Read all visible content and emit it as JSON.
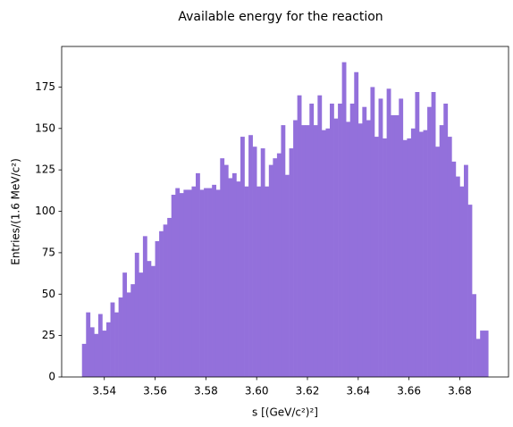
{
  "chart_data": {
    "type": "histogram",
    "title": "Available energy for the reaction",
    "x_label": "s [(GeV/c²)²]",
    "y_label": "Entries/(1.6 MeV/c²)",
    "color": "#9370db",
    "bins": [
      3.5312,
      3.5328,
      3.5344,
      3.536,
      3.5376,
      3.5392,
      3.5408,
      3.5424,
      3.544,
      3.5456,
      3.5472,
      3.5488,
      3.5504,
      3.552,
      3.5536,
      3.5552,
      3.5568,
      3.5584,
      3.56,
      3.5616,
      3.5632,
      3.5648,
      3.5664,
      3.568,
      3.5696,
      3.5712,
      3.5728,
      3.5744,
      3.576,
      3.5776,
      3.5792,
      3.5808,
      3.5824,
      3.584,
      3.5856,
      3.5872,
      3.5888,
      3.5904,
      3.592,
      3.5936,
      3.5952,
      3.5968,
      3.5984,
      3.6,
      3.6016,
      3.6032,
      3.6048,
      3.6064,
      3.608,
      3.6096,
      3.6112,
      3.6128,
      3.6144,
      3.616,
      3.6176,
      3.6192,
      3.6208,
      3.6224,
      3.624,
      3.6256,
      3.6272,
      3.6288,
      3.6304,
      3.632,
      3.6336,
      3.6352,
      3.6368,
      3.6384,
      3.64,
      3.6416,
      3.6432,
      3.6448,
      3.6464,
      3.648,
      3.6496,
      3.6512,
      3.6528,
      3.6544,
      3.656,
      3.6576,
      3.6592,
      3.6608,
      3.6624,
      3.664,
      3.6656,
      3.6672,
      3.6688,
      3.6704,
      3.672,
      3.6736,
      3.6752,
      3.6768,
      3.6784,
      3.68,
      3.6816,
      3.6832,
      3.6848,
      3.6864,
      3.688,
      3.6896,
      3.6912
    ],
    "values": [
      20,
      39,
      30,
      26,
      38,
      28,
      33,
      45,
      39,
      48,
      63,
      51,
      56,
      75,
      63,
      85,
      70,
      67,
      82,
      88,
      92,
      96,
      110,
      114,
      111,
      113,
      113,
      115,
      123,
      113,
      114,
      114,
      116,
      113,
      132,
      128,
      120,
      123,
      118,
      145,
      115,
      146,
      139,
      115,
      138,
      115,
      128,
      132,
      135,
      152,
      122,
      138,
      155,
      170,
      152,
      152,
      165,
      152,
      170,
      149,
      150,
      165,
      156,
      165,
      190,
      154,
      165,
      184,
      153,
      163,
      155,
      175,
      145,
      168,
      144,
      174,
      158,
      158,
      168,
      143,
      144,
      150,
      172,
      148,
      149,
      163,
      172,
      139,
      152,
      165,
      145,
      130,
      121,
      115,
      128,
      104,
      50,
      23,
      28,
      28
    ],
    "xlim": [
      3.5232,
      3.6992
    ],
    "ylim": [
      0,
      199.5
    ],
    "xticks": [
      3.54,
      3.56,
      3.58,
      {
        "value": 3.6,
        "label": "3.60"
      },
      3.62,
      3.64,
      3.66,
      3.68
    ],
    "yticks": [
      0,
      25,
      50,
      75,
      100,
      125,
      150,
      175
    ]
  }
}
